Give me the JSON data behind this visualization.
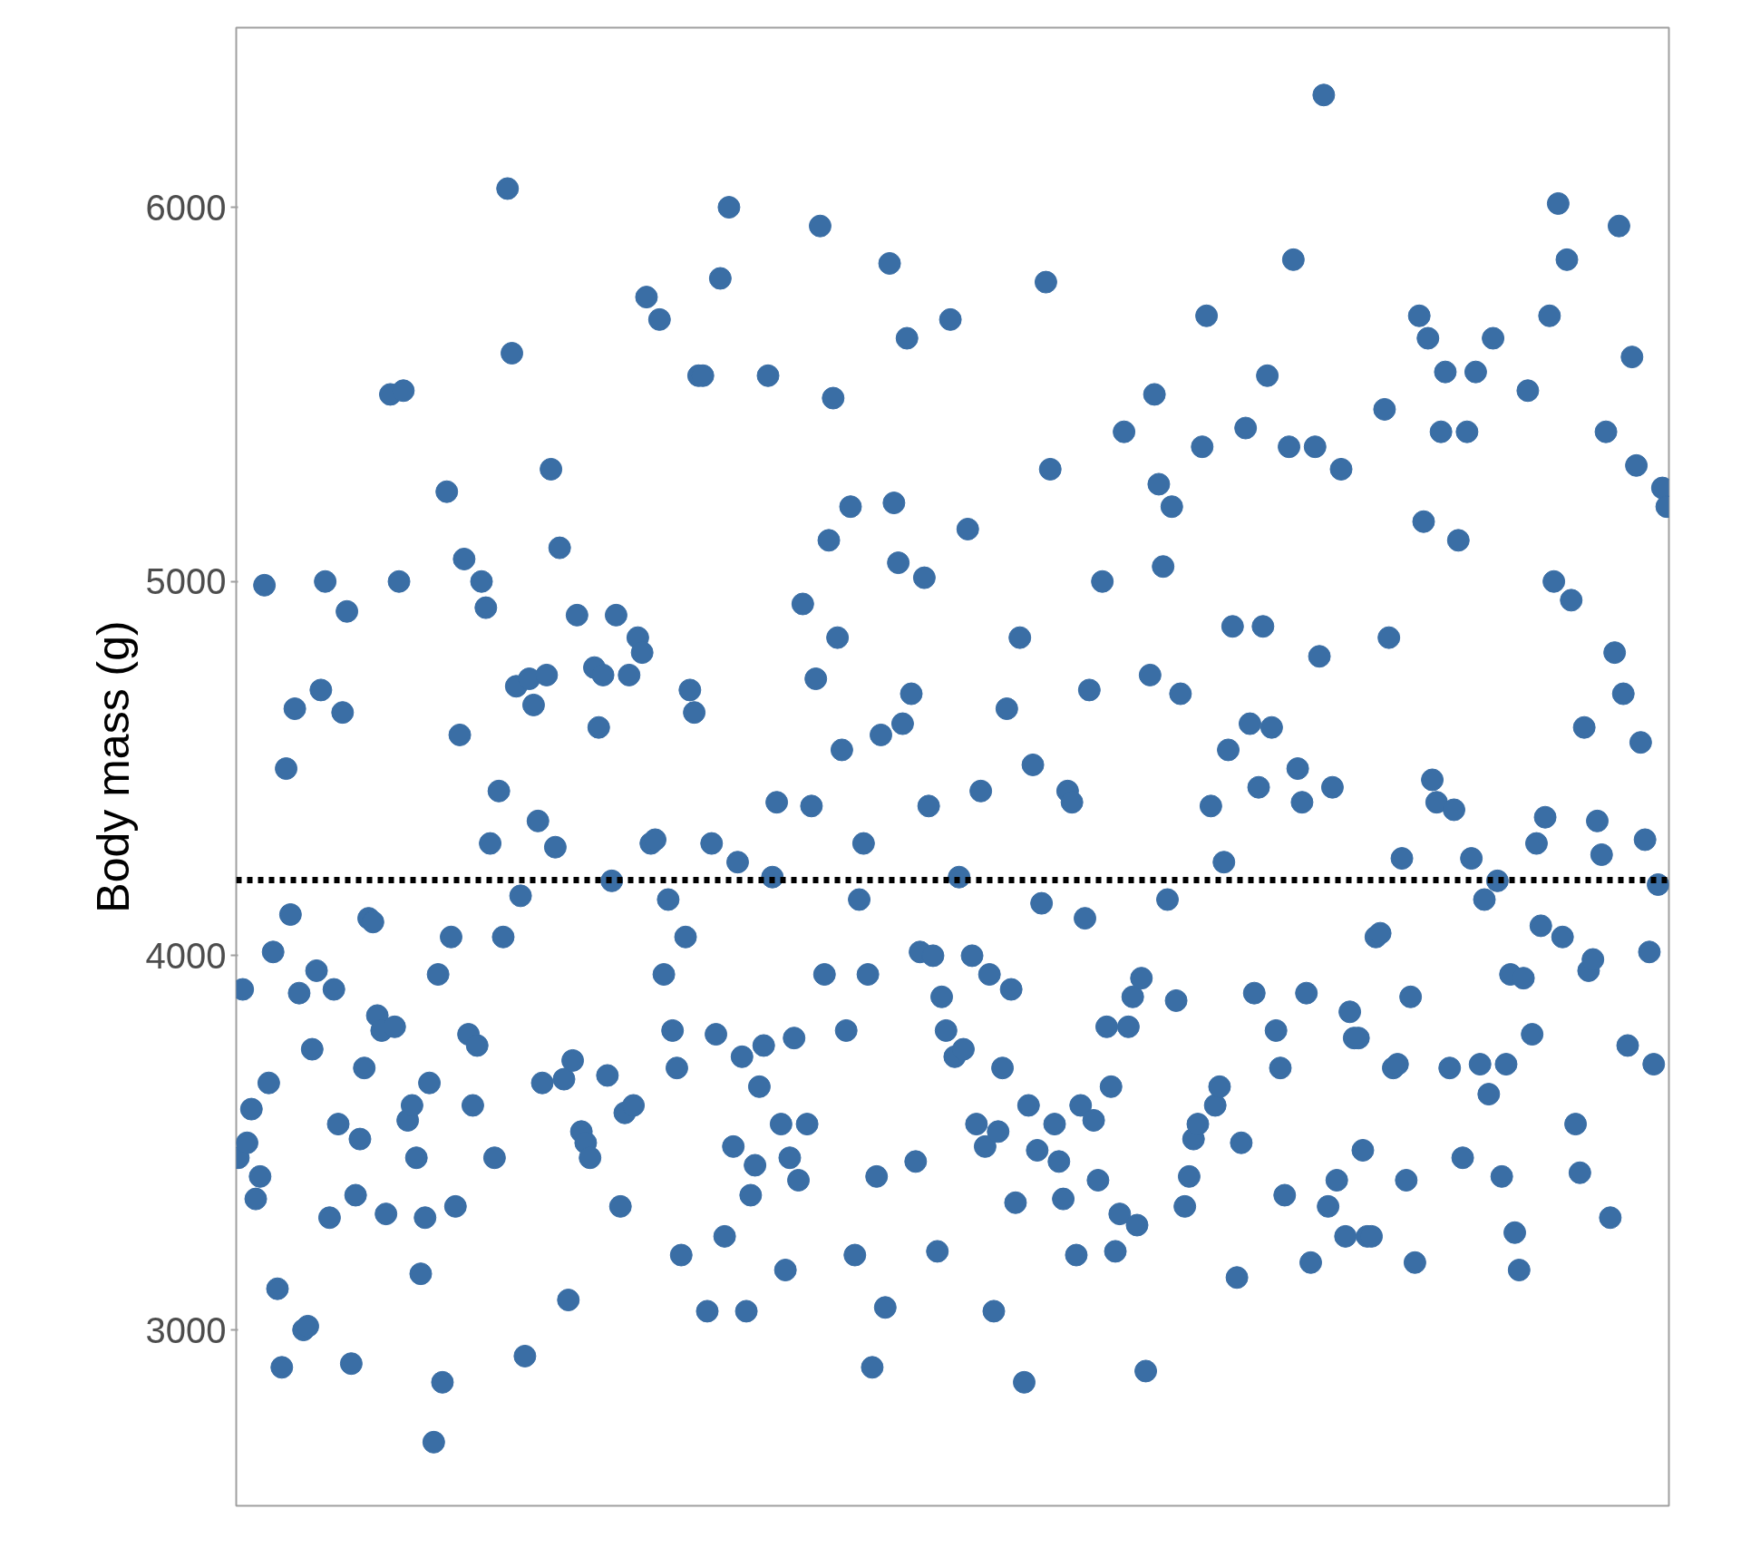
{
  "chart_data": {
    "type": "scatter",
    "ylabel": "Body mass (g)",
    "color": "#3a6ea5",
    "marker": "circle",
    "grid": false,
    "tick_labels": "y",
    "categories": [
      null,
      null,
      null,
      null,
      null,
      null,
      null,
      null,
      null,
      null,
      null,
      null,
      null,
      null,
      null,
      null,
      null,
      null,
      null,
      null,
      null,
      null,
      null,
      null,
      null,
      null,
      null,
      null,
      null,
      null,
      null,
      null,
      null,
      null,
      null,
      null,
      null,
      null,
      null,
      null,
      null,
      null,
      null,
      null,
      null,
      null,
      null,
      null,
      null,
      null,
      null,
      null,
      null,
      null,
      null,
      null,
      null,
      null,
      null,
      null,
      null,
      null,
      null,
      null,
      null,
      null,
      null,
      null,
      null,
      null,
      null,
      null,
      null,
      null,
      null,
      null,
      null,
      null,
      null,
      null,
      null,
      null,
      null,
      null,
      null,
      null,
      null,
      null,
      null,
      null,
      null,
      null,
      null,
      null,
      null,
      null,
      null,
      null,
      null,
      null,
      null,
      null,
      null,
      null,
      null,
      null,
      null,
      null,
      null,
      null,
      null,
      null,
      null,
      null,
      null,
      null,
      null,
      null,
      null,
      null,
      null,
      null,
      null,
      null,
      null,
      null,
      null,
      null,
      null,
      null,
      null,
      null,
      null,
      null,
      null,
      null,
      null,
      null,
      null,
      null,
      null,
      null,
      null,
      null,
      null,
      null,
      null,
      null,
      null,
      null,
      null,
      null,
      null,
      null,
      null,
      null,
      null,
      null,
      null,
      null,
      null,
      null,
      null,
      null,
      null,
      null,
      null,
      null,
      null,
      null,
      null,
      null,
      null,
      null,
      null,
      null,
      null,
      null,
      null,
      null,
      null,
      null,
      null,
      null,
      null,
      null,
      null,
      null,
      null,
      null,
      null,
      null,
      null,
      null,
      null,
      null,
      null,
      null,
      null,
      null,
      null,
      null,
      null,
      null,
      null,
      null,
      null,
      null,
      null,
      null,
      null,
      null,
      null,
      null,
      null,
      null,
      null,
      null,
      null,
      null,
      null,
      null,
      null,
      null,
      null,
      null,
      null,
      null,
      null,
      null,
      null,
      null,
      null,
      null,
      null,
      null,
      null,
      null,
      null,
      null,
      null,
      null,
      null,
      null,
      null,
      null,
      null,
      null,
      null,
      null,
      null,
      null,
      null,
      null,
      null,
      null,
      null,
      null,
      null,
      null,
      null,
      null,
      null,
      null,
      null,
      null,
      null,
      null,
      null,
      null,
      null,
      null,
      null,
      null,
      null,
      null,
      null,
      null,
      null,
      null,
      null,
      null,
      null,
      null,
      null,
      null,
      null,
      null,
      null,
      null,
      null,
      null,
      null,
      null,
      null,
      null,
      null,
      null,
      null,
      null,
      null,
      null,
      null,
      null,
      null,
      null,
      null,
      null,
      null,
      null,
      null,
      null,
      null,
      null,
      null,
      null,
      null,
      null,
      null,
      null,
      null,
      null,
      null,
      null,
      null,
      null,
      null,
      null,
      null,
      null
    ],
    "ylim": [
      2530,
      6480
    ],
    "yticks": [
      3000,
      4000,
      5000,
      6000
    ],
    "ref_lines": [
      {
        "axis": "y",
        "value": 4202,
        "color": "#000000",
        "line_style": "dotted"
      }
    ],
    "values": [
      3460,
      3910,
      3500,
      3590,
      3350,
      3410,
      4990,
      3660,
      4010,
      3110,
      2900,
      4500,
      4110,
      4660,
      3900,
      3000,
      3010,
      3750,
      3960,
      4710,
      5000,
      3300,
      3910,
      3550,
      4650,
      4920,
      2910,
      3360,
      3510,
      3700,
      4100,
      4090,
      3840,
      3800,
      3310,
      5500,
      3810,
      5000,
      5510,
      3560,
      3600,
      3460,
      3150,
      3300,
      3660,
      2700,
      3950,
      2860,
      5240,
      4050,
      3330,
      4590,
      5060,
      3790,
      3600,
      3760,
      5000,
      4930,
      4300,
      3460,
      4440,
      4050,
      6050,
      5610,
      4720,
      4160,
      2930,
      4740,
      4670,
      4360,
      3660,
      4750,
      5300,
      4290,
      5090,
      3670,
      3080,
      3720,
      4910,
      3530,
      3500,
      3460,
      4770,
      4610,
      4750,
      3680,
      4200,
      4910,
      3330,
      3580,
      4750,
      3600,
      4850,
      4810,
      5760,
      4300,
      4310,
      5700,
      3950,
      4150,
      3800,
      3700,
      3200,
      4050,
      4710,
      4650,
      5550,
      5550,
      3050,
      4300,
      3790,
      5810,
      3250,
      6000,
      3490,
      4250,
      3730,
      3050,
      3360,
      3440,
      3650,
      3760,
      5550,
      4210,
      4410,
      3550,
      3160,
      3460,
      3780,
      3400,
      4940,
      3550,
      4400,
      4740,
      5950,
      3950,
      5110,
      5490,
      4850,
      4550,
      3800,
      5200,
      3200,
      4150,
      4300,
      3950,
      2900,
      3410,
      4590,
      3060,
      5850,
      5210,
      5050,
      4620,
      5650,
      4700,
      3450,
      4010,
      5010,
      4400,
      4000,
      3210,
      3890,
      3800,
      5700,
      3730,
      4210,
      3750,
      5140,
      4000,
      3550,
      4440,
      3490,
      3950,
      3050,
      3530,
      3700,
      4660,
      3910,
      3340,
      4850,
      2860,
      3600,
      4510,
      3480,
      4140,
      5800,
      5300,
      3550,
      3450,
      3350,
      4440,
      4410,
      3200,
      3600,
      4100,
      4710,
      3560,
      3400,
      5000,
      3810,
      3650,
      3210,
      3310,
      5400,
      3810,
      3890,
      3280,
      3940,
      2890,
      4750,
      5500,
      5260,
      5040,
      4150,
      5200,
      3880,
      4700,
      3330,
      3410,
      3510,
      3550,
      5360,
      5710,
      4400,
      3600,
      3650,
      4250,
      4550,
      4880,
      3140,
      3500,
      5410,
      4620,
      3900,
      4450,
      4880,
      5550,
      4610,
      3800,
      3700,
      3360,
      5360,
      5860,
      4500,
      4410,
      3900,
      3180,
      5360,
      4800,
      6300,
      3330,
      4450,
      3400,
      5300,
      3250,
      3850,
      3780,
      3780,
      3480,
      3250,
      3250,
      4050,
      4060,
      5460,
      4850,
      3700,
      3710,
      4260,
      3400,
      3890,
      3180,
      5710,
      5160,
      5650,
      4470,
      4410,
      5400,
      5560,
      3700,
      4390,
      5110,
      3460,
      5400,
      4260,
      5560,
      3710,
      4150,
      3630,
      5650,
      4200,
      3410,
      3710,
      3950,
      3260,
      3160,
      3940,
      5510,
      3790,
      4300,
      4080,
      4370,
      5710,
      5000,
      6010,
      4050,
      5860,
      4950,
      3550,
      3420,
      4610,
      3960,
      3990,
      4360,
      4270,
      5400,
      3300,
      4810,
      5950,
      4700,
      3760,
      5600,
      5310,
      4570,
      4310,
      4010,
      3710,
      4190,
      5250,
      5200
    ]
  }
}
